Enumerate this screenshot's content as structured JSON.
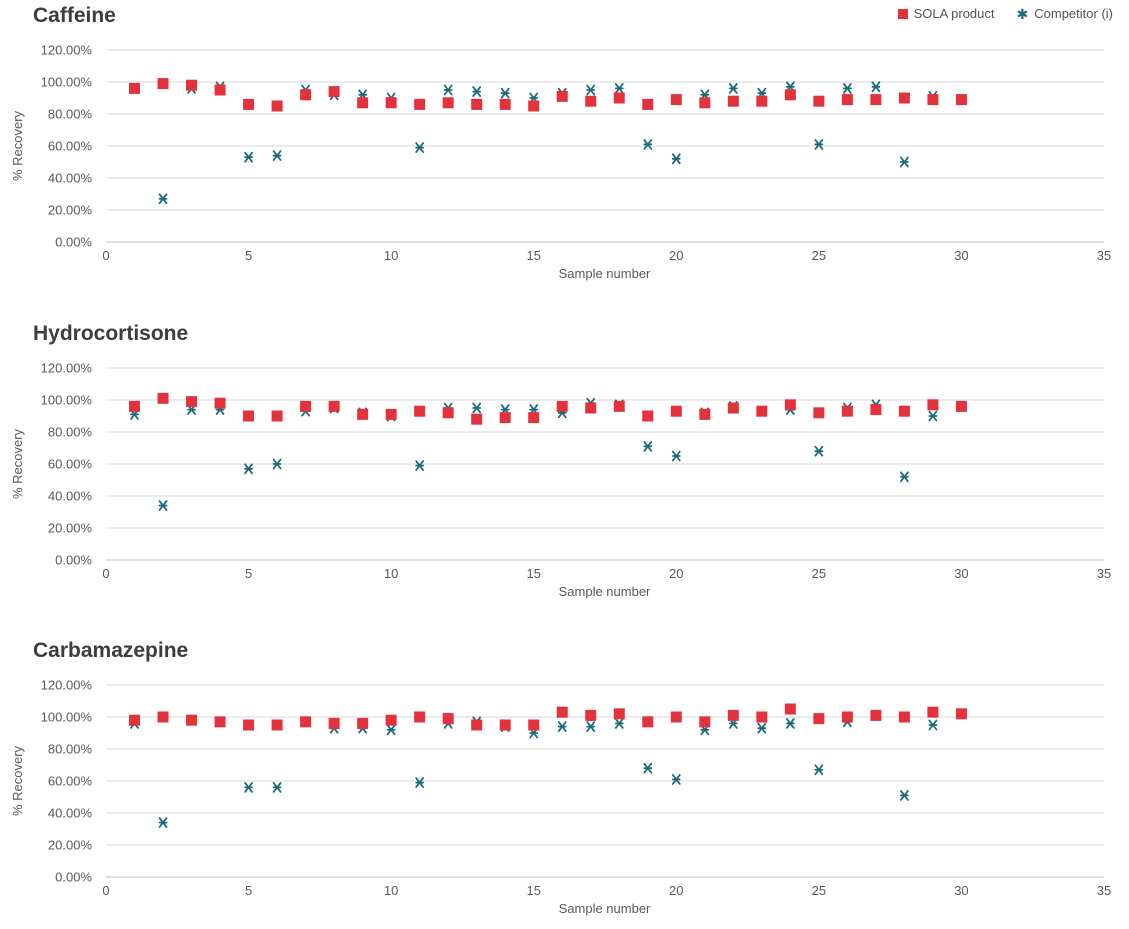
{
  "legend": {
    "sola_label": "SOLA product",
    "competitor_label": "Competitor (i)"
  },
  "colors": {
    "sola": "#e3323b",
    "competitor": "#1c6b7a",
    "grid": "#d9d9d9",
    "axis_text": "#595959"
  },
  "chart_data": [
    {
      "type": "scatter",
      "title": "Caffeine",
      "xlabel": "Sample number",
      "ylabel": "% Recovery",
      "xlim": [
        0,
        35
      ],
      "ylim": [
        0,
        120
      ],
      "xticks": [
        0,
        5,
        10,
        15,
        20,
        25,
        30,
        35
      ],
      "yticks": [
        "0.00%",
        "20.00%",
        "40.00%",
        "60.00%",
        "80.00%",
        "100.00%",
        "120.00%"
      ],
      "grid": true,
      "legend": "top-right",
      "series": [
        {
          "name": "SOLA product",
          "marker": "square",
          "x": [
            1,
            2,
            3,
            4,
            5,
            6,
            7,
            8,
            9,
            10,
            11,
            12,
            13,
            14,
            15,
            16,
            17,
            18,
            19,
            20,
            21,
            22,
            23,
            24,
            25,
            26,
            27,
            28,
            29,
            30
          ],
          "y": [
            96,
            99,
            98,
            95,
            86,
            85,
            92,
            94,
            87,
            87,
            86,
            87,
            86,
            86,
            85,
            91,
            88,
            90,
            86,
            89,
            87,
            88,
            88,
            92,
            88,
            89,
            89,
            90,
            89,
            89
          ]
        },
        {
          "name": "Competitor (i)",
          "marker": "x",
          "x": [
            1,
            2,
            3,
            4,
            5,
            6,
            7,
            8,
            9,
            10,
            11,
            12,
            13,
            14,
            15,
            16,
            17,
            18,
            19,
            20,
            21,
            22,
            23,
            24,
            25,
            26,
            27,
            28,
            29,
            30
          ],
          "y": [
            96,
            27,
            96,
            97,
            53,
            54,
            95,
            92,
            92,
            90,
            59,
            95,
            94,
            93,
            90,
            93,
            95,
            96,
            61,
            52,
            92,
            96,
            93,
            97,
            61,
            96,
            97,
            50,
            91,
            89
          ]
        }
      ]
    },
    {
      "type": "scatter",
      "title": "Hydrocortisone",
      "xlabel": "Sample number",
      "ylabel": "% Recovery",
      "xlim": [
        0,
        35
      ],
      "ylim": [
        0,
        120
      ],
      "xticks": [
        0,
        5,
        10,
        15,
        20,
        25,
        30,
        35
      ],
      "yticks": [
        "0.00%",
        "20.00%",
        "40.00%",
        "60.00%",
        "80.00%",
        "100.00%",
        "120.00%"
      ],
      "grid": true,
      "series": [
        {
          "name": "SOLA product",
          "marker": "square",
          "x": [
            1,
            2,
            3,
            4,
            5,
            6,
            7,
            8,
            9,
            10,
            11,
            12,
            13,
            14,
            15,
            16,
            17,
            18,
            19,
            20,
            21,
            22,
            23,
            24,
            25,
            26,
            27,
            28,
            29,
            30
          ],
          "y": [
            96,
            101,
            99,
            98,
            90,
            90,
            96,
            96,
            91,
            91,
            93,
            92,
            88,
            89,
            89,
            96,
            95,
            96,
            90,
            93,
            91,
            95,
            93,
            97,
            92,
            93,
            94,
            93,
            97,
            96
          ]
        },
        {
          "name": "Competitor (i)",
          "marker": "x",
          "x": [
            1,
            2,
            3,
            4,
            5,
            6,
            7,
            8,
            9,
            10,
            11,
            12,
            13,
            14,
            15,
            16,
            17,
            18,
            19,
            20,
            21,
            22,
            23,
            24,
            25,
            26,
            27,
            28,
            29,
            30
          ],
          "y": [
            91,
            34,
            94,
            94,
            57,
            60,
            93,
            95,
            92,
            90,
            59,
            95,
            95,
            94,
            94,
            92,
            98,
            97,
            71,
            65,
            92,
            96,
            93,
            94,
            68,
            95,
            97,
            52,
            90,
            96
          ]
        }
      ]
    },
    {
      "type": "scatter",
      "title": "Carbamazepine",
      "xlabel": "Sample number",
      "ylabel": "% Recovery",
      "xlim": [
        0,
        35
      ],
      "ylim": [
        0,
        120
      ],
      "xticks": [
        0,
        5,
        10,
        15,
        20,
        25,
        30,
        35
      ],
      "yticks": [
        "0.00%",
        "20.00%",
        "40.00%",
        "60.00%",
        "80.00%",
        "100.00%",
        "120.00%"
      ],
      "grid": true,
      "series": [
        {
          "name": "SOLA product",
          "marker": "square",
          "x": [
            1,
            2,
            3,
            4,
            5,
            6,
            7,
            8,
            9,
            10,
            11,
            12,
            13,
            14,
            15,
            16,
            17,
            18,
            19,
            20,
            21,
            22,
            23,
            24,
            25,
            26,
            27,
            28,
            29,
            30
          ],
          "y": [
            98,
            100,
            98,
            97,
            95,
            95,
            97,
            96,
            96,
            98,
            100,
            99,
            95,
            95,
            95,
            103,
            101,
            102,
            97,
            100,
            97,
            101,
            100,
            105,
            99,
            100,
            101,
            100,
            103,
            102
          ]
        },
        {
          "name": "Competitor (i)",
          "marker": "x",
          "x": [
            1,
            2,
            3,
            4,
            5,
            6,
            7,
            8,
            9,
            10,
            11,
            12,
            13,
            14,
            15,
            16,
            17,
            18,
            19,
            20,
            21,
            22,
            23,
            24,
            25,
            26,
            27,
            28,
            29,
            30
          ],
          "y": [
            96,
            34,
            98,
            97,
            56,
            56,
            97,
            93,
            93,
            92,
            59,
            96,
            97,
            94,
            90,
            94,
            94,
            96,
            68,
            61,
            92,
            96,
            93,
            96,
            67,
            97,
            101,
            51,
            95,
            102
          ]
        }
      ]
    }
  ]
}
